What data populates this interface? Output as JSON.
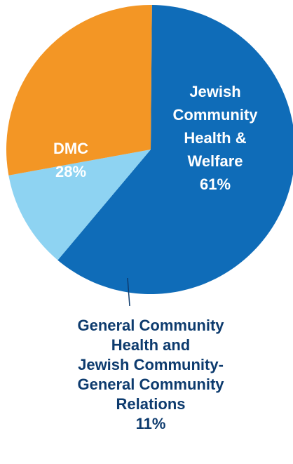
{
  "chart_data": {
    "type": "pie",
    "title": "",
    "slices": [
      {
        "label_lines": [
          "Jewish",
          "Community",
          "Health &",
          "Welfare"
        ],
        "value_label": "61%",
        "value": 61,
        "color": "#0f6cb8"
      },
      {
        "label_lines": [
          "General Community",
          "Health  and",
          "Jewish Community-",
          "General Community",
          "Relations"
        ],
        "value_label": "11%",
        "value": 11,
        "color": "#8ed3f2"
      },
      {
        "label_lines": [
          "DMC"
        ],
        "value_label": "28%",
        "value": 28,
        "color": "#f39625"
      }
    ]
  }
}
